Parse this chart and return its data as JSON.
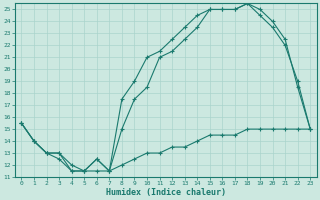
{
  "xlabel": "Humidex (Indice chaleur)",
  "bg_color": "#cce8e0",
  "grid_color": "#aad4cc",
  "line_color": "#1a7a6e",
  "xlim": [
    -0.5,
    23.5
  ],
  "ylim": [
    11,
    25.5
  ],
  "xticks": [
    0,
    1,
    2,
    3,
    4,
    5,
    6,
    7,
    8,
    9,
    10,
    11,
    12,
    13,
    14,
    15,
    16,
    17,
    18,
    19,
    20,
    21,
    22,
    23
  ],
  "yticks": [
    11,
    12,
    13,
    14,
    15,
    16,
    17,
    18,
    19,
    20,
    21,
    22,
    23,
    24,
    25
  ],
  "line1_x": [
    0,
    1,
    2,
    3,
    4,
    5,
    6,
    7,
    8,
    9,
    10,
    11,
    12,
    13,
    14,
    15,
    16,
    17,
    18,
    19,
    20,
    21,
    22,
    23
  ],
  "line1_y": [
    15.5,
    14.0,
    13.0,
    13.0,
    11.5,
    11.5,
    12.5,
    11.5,
    15.0,
    17.5,
    18.5,
    21.0,
    21.5,
    22.5,
    23.5,
    25.0,
    25.0,
    25.0,
    25.5,
    25.0,
    24.0,
    22.5,
    18.5,
    15.0
  ],
  "line2_x": [
    0,
    1,
    2,
    3,
    4,
    5,
    6,
    7,
    8,
    9,
    10,
    11,
    12,
    13,
    14,
    15,
    16,
    17,
    18,
    19,
    20,
    21,
    22,
    23
  ],
  "line2_y": [
    15.5,
    14.0,
    13.0,
    13.0,
    12.0,
    11.5,
    12.5,
    11.5,
    17.5,
    19.0,
    21.0,
    21.5,
    22.5,
    23.5,
    24.5,
    25.0,
    25.0,
    25.0,
    25.5,
    24.5,
    23.5,
    22.0,
    19.0,
    15.0
  ],
  "line3_x": [
    0,
    1,
    2,
    3,
    4,
    5,
    6,
    7,
    8,
    9,
    10,
    11,
    12,
    13,
    14,
    15,
    16,
    17,
    18,
    19,
    20,
    21,
    22,
    23
  ],
  "line3_y": [
    15.5,
    14.0,
    13.0,
    12.5,
    11.5,
    11.5,
    11.5,
    11.5,
    12.0,
    12.5,
    13.0,
    13.0,
    13.5,
    13.5,
    14.0,
    14.5,
    14.5,
    14.5,
    15.0,
    15.0,
    15.0,
    15.0,
    15.0,
    15.0
  ]
}
